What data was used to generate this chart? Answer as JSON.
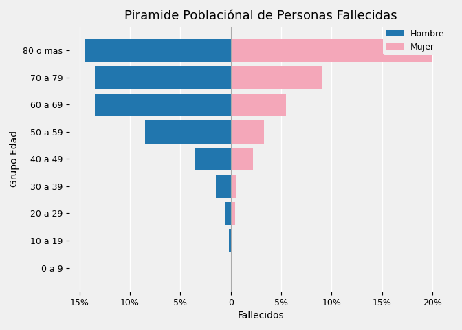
{
  "title": "Piramide Poblaciónal de Personas Fallecidas",
  "xlabel": "Fallecidos",
  "ylabel": "Grupo Edad",
  "age_groups": [
    "0 a 9",
    "10 a 19",
    "20 a 29",
    "30 a 39",
    "40 a 49",
    "50 a 59",
    "60 a 69",
    "70 a 79",
    "80 o mas"
  ],
  "hombre": [
    0.0,
    0.2,
    0.5,
    1.5,
    3.5,
    8.5,
    13.5,
    13.5,
    14.5
  ],
  "mujer": [
    0.15,
    0.15,
    0.4,
    0.5,
    2.2,
    3.3,
    5.5,
    9.0,
    20.0
  ],
  "hombre_color": "#2176ae",
  "mujer_color": "#f4a7b9",
  "background_color": "#f0f0f0",
  "plot_bg_color": "#f0f0f0",
  "grid_color": "#ffffff",
  "xlim": [
    -16,
    22
  ],
  "xticks": [
    -15,
    -10,
    -5,
    0,
    5,
    10,
    15,
    20
  ],
  "xtick_labels": [
    "15%",
    "10%",
    "5%",
    "0",
    "5%",
    "10%",
    "15%",
    "20%"
  ],
  "title_fontsize": 13,
  "label_fontsize": 10,
  "tick_fontsize": 9,
  "legend_labels": [
    "Hombre",
    "Mujer"
  ]
}
